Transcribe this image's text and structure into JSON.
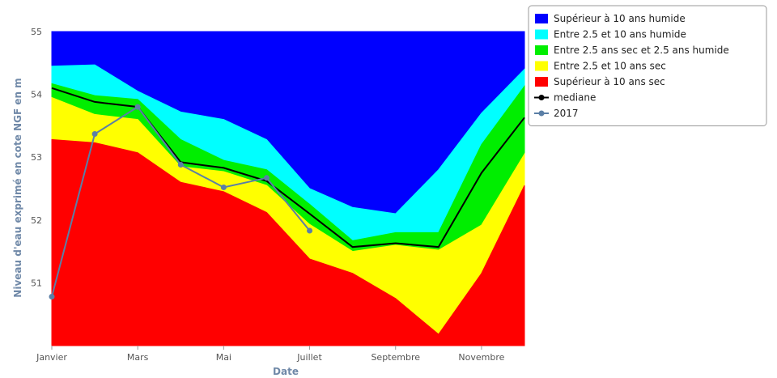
{
  "chart_data": {
    "type": "area",
    "title": "",
    "xlabel": "Date",
    "ylabel": "Niveau d'eau exprimé en cote NGF en m",
    "ylim": [
      50.0,
      55.0
    ],
    "y_ticks": [
      "51",
      "52",
      "53",
      "54",
      "55"
    ],
    "x_tick_labels": [
      "Janvier",
      "Mars",
      "Mai",
      "Juillet",
      "Septembre",
      "Novembre"
    ],
    "x_months": [
      1,
      2,
      3,
      4,
      5,
      6,
      7,
      8,
      9,
      10,
      11,
      12
    ],
    "bands": [
      {
        "name": "Supérieur à 10 ans humide",
        "color": "#0000ff",
        "values": [
          55,
          55,
          55,
          55,
          55,
          55,
          55,
          55,
          55,
          55,
          55,
          55
        ]
      },
      {
        "name": "Entre 2.5 et 10 ans humide",
        "color": "#00ffff",
        "values": [
          54.45,
          54.47,
          54.05,
          53.72,
          53.6,
          53.28,
          52.5,
          52.2,
          52.1,
          52.8,
          53.7,
          54.4
        ]
      },
      {
        "name": "Entre 2.5 ans sec et 2.5 ans humide",
        "color": "#00ee00",
        "values": [
          54.17,
          53.98,
          53.92,
          53.28,
          52.95,
          52.8,
          52.25,
          51.67,
          51.8,
          51.8,
          53.2,
          54.13
        ]
      },
      {
        "name": "Entre 2.5 et 10 ans sec",
        "color": "#ffff00",
        "values": [
          53.95,
          53.68,
          53.6,
          52.85,
          52.77,
          52.55,
          51.93,
          51.5,
          51.6,
          51.52,
          51.92,
          53.05
        ]
      },
      {
        "name": "Supérieur à 10 ans sec",
        "color": "#ff0000",
        "values": [
          53.28,
          53.23,
          53.07,
          52.6,
          52.45,
          52.12,
          51.38,
          51.15,
          50.75,
          50.18,
          51.15,
          52.55
        ]
      }
    ],
    "series": [
      {
        "name": "mediane",
        "color": "#000000",
        "values": [
          54.1,
          53.88,
          53.8,
          52.92,
          52.83,
          52.62,
          52.1,
          51.57,
          51.63,
          51.57,
          52.75,
          53.63
        ]
      },
      {
        "name": "2017",
        "color": "#5b7fa6",
        "values": [
          50.78,
          53.37,
          53.8,
          52.88,
          52.52,
          52.67,
          51.83
        ]
      }
    ],
    "legend_position": "top-right"
  }
}
